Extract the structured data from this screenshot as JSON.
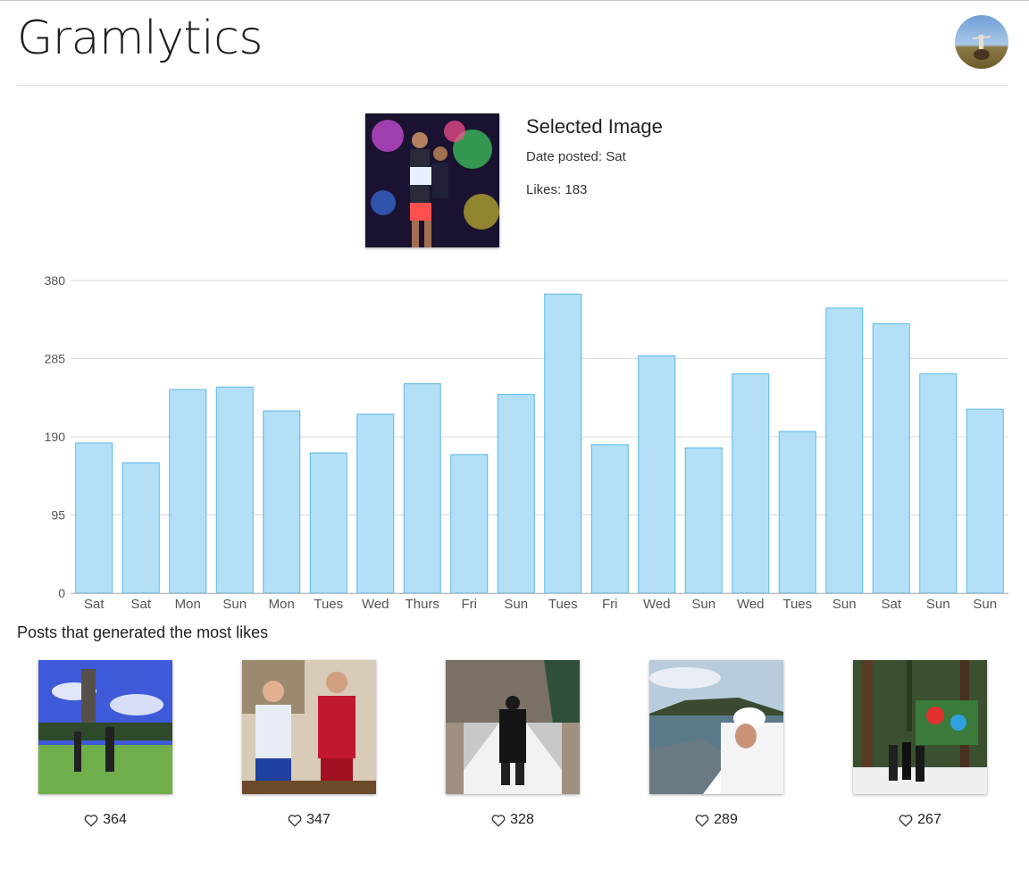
{
  "header": {
    "app_title": "Gramlytics",
    "avatar_icon": "user-avatar"
  },
  "selected": {
    "title": "Selected Image",
    "date_text": "Date posted: Sat",
    "likes_text": "Likes: 183"
  },
  "chart_data": {
    "type": "bar",
    "categories": [
      "Sat",
      "Sat",
      "Mon",
      "Sun",
      "Mon",
      "Tues",
      "Wed",
      "Thurs",
      "Fri",
      "Sun",
      "Tues",
      "Fri",
      "Wed",
      "Sun",
      "Wed",
      "Tues",
      "Sun",
      "Sat",
      "Sun",
      "Sun"
    ],
    "values": [
      183,
      159,
      248,
      251,
      222,
      171,
      218,
      255,
      169,
      242,
      364,
      181,
      289,
      177,
      267,
      197,
      347,
      328,
      267,
      224
    ],
    "ylim": [
      0,
      380
    ],
    "yticks": [
      0,
      95,
      190,
      285,
      380
    ],
    "grid": true,
    "colors": {
      "fill": "#b3e0f7",
      "stroke": "#5bb8ea",
      "grid": "#d9d9d9"
    }
  },
  "top_posts": {
    "title": "Posts that generated the most likes",
    "heart_icon": "heart-outline-icon",
    "items": [
      {
        "likes": "364"
      },
      {
        "likes": "347"
      },
      {
        "likes": "328"
      },
      {
        "likes": "289"
      },
      {
        "likes": "267"
      }
    ]
  }
}
